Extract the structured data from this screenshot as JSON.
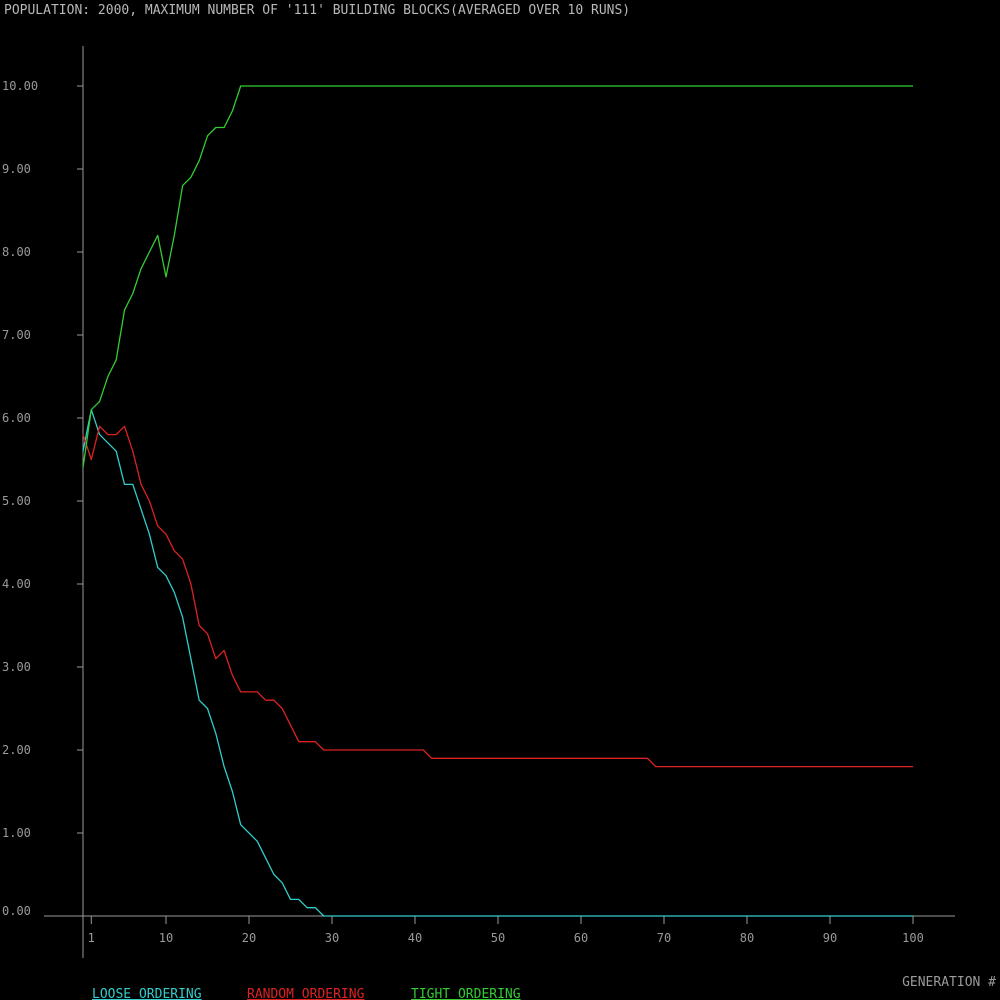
{
  "chart_data": {
    "type": "line",
    "title": "POPULATION: 2000, MAXIMUM NUMBER OF '111' BUILDING BLOCKS(AVERAGED OVER 10 RUNS)",
    "xlabel": "GENERATION #",
    "ylabel": "",
    "xlim": [
      0,
      105
    ],
    "ylim": [
      -0.1,
      10.5
    ],
    "x_ticks": [
      1,
      10,
      20,
      30,
      40,
      50,
      60,
      70,
      80,
      90,
      100
    ],
    "y_ticks": [
      0,
      1,
      2,
      3,
      4,
      5,
      6,
      7,
      8,
      9,
      10
    ],
    "y_tick_labels": [
      "0.00",
      "1.00",
      "2.00",
      "3.00",
      "4.00",
      "5.00",
      "6.00",
      "7.00",
      "8.00",
      "9.00",
      "10.00"
    ],
    "legend_placement": "bottom-left",
    "series": [
      {
        "name": "LOOSE ORDERING",
        "color": "#33cccc",
        "x": [
          0,
          1,
          2,
          3,
          4,
          5,
          6,
          7,
          8,
          9,
          10,
          11,
          12,
          13,
          14,
          15,
          16,
          17,
          18,
          19,
          20,
          21,
          22,
          23,
          24,
          25,
          26,
          27,
          28,
          29,
          30,
          100
        ],
        "y": [
          5.6,
          6.1,
          5.8,
          5.7,
          5.6,
          5.2,
          5.2,
          4.9,
          4.6,
          4.2,
          4.1,
          3.9,
          3.6,
          3.1,
          2.6,
          2.5,
          2.2,
          1.8,
          1.5,
          1.1,
          1.0,
          0.9,
          0.7,
          0.5,
          0.4,
          0.2,
          0.2,
          0.1,
          0.1,
          0.0,
          0.0,
          0.0
        ]
      },
      {
        "name": "RANDOM ORDERING",
        "color": "#dd2222",
        "x": [
          0,
          1,
          2,
          3,
          4,
          5,
          6,
          7,
          8,
          9,
          10,
          11,
          12,
          13,
          14,
          15,
          16,
          17,
          18,
          19,
          20,
          21,
          22,
          23,
          24,
          25,
          26,
          27,
          28,
          29,
          30,
          41,
          42,
          67,
          68,
          69,
          100
        ],
        "y": [
          5.8,
          5.5,
          5.9,
          5.8,
          5.8,
          5.9,
          5.6,
          5.2,
          5.0,
          4.7,
          4.6,
          4.4,
          4.3,
          4.0,
          3.5,
          3.4,
          3.1,
          3.2,
          2.9,
          2.7,
          2.7,
          2.7,
          2.6,
          2.6,
          2.5,
          2.3,
          2.1,
          2.1,
          2.1,
          2.0,
          2.0,
          2.0,
          1.9,
          1.9,
          1.9,
          1.8,
          1.8
        ]
      },
      {
        "name": "TIGHT ORDERING",
        "color": "#33cc33",
        "x": [
          0,
          1,
          2,
          3,
          4,
          5,
          6,
          7,
          8,
          9,
          10,
          11,
          12,
          13,
          14,
          15,
          16,
          17,
          18,
          19,
          20,
          100
        ],
        "y": [
          5.4,
          6.1,
          6.2,
          6.5,
          6.7,
          7.3,
          7.5,
          7.8,
          8.0,
          8.2,
          7.7,
          8.2,
          8.8,
          8.9,
          9.1,
          9.4,
          9.5,
          9.5,
          9.7,
          10.0,
          10.0,
          10.0
        ]
      }
    ]
  },
  "colors": {
    "background": "#000000",
    "axis": "#9a9a9a",
    "title_text": "#b8b8b8",
    "tick_text": "#9a9a9a"
  }
}
